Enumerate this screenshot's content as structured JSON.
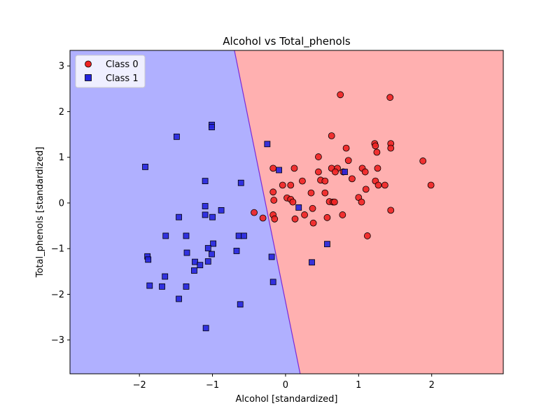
{
  "chart_data": {
    "type": "scatter",
    "title": "Alcohol vs Total_phenols",
    "xlabel": "Alcohol [standardized]",
    "ylabel": "Total_phenols [standardized]",
    "xlim": [
      -2.95,
      2.98
    ],
    "ylim": [
      -3.74,
      3.34
    ],
    "xticks": [
      -2,
      -1,
      0,
      1,
      2
    ],
    "yticks": [
      -3,
      -2,
      -1,
      0,
      1,
      2,
      3
    ],
    "legend_position": "top-left",
    "decision_regions": {
      "boundary": [
        [
          -0.7,
          3.34
        ],
        [
          0.2,
          -3.74
        ]
      ],
      "class_0_color": "#ffb0b0",
      "class_1_color": "#b0b0ff",
      "boundary_color": "#7a2ad8"
    },
    "series": [
      {
        "name": "Class 0",
        "marker": "circle",
        "color": "#ee2222",
        "points": [
          [
            0.75,
            2.37
          ],
          [
            1.43,
            2.31
          ],
          [
            0.63,
            1.47
          ],
          [
            1.22,
            1.3
          ],
          [
            1.44,
            1.3
          ],
          [
            1.23,
            1.25
          ],
          [
            0.83,
            1.2
          ],
          [
            1.44,
            1.2
          ],
          [
            1.25,
            1.11
          ],
          [
            0.45,
            1.01
          ],
          [
            0.86,
            0.93
          ],
          [
            1.88,
            0.92
          ],
          [
            -0.17,
            0.76
          ],
          [
            0.12,
            0.76
          ],
          [
            0.63,
            0.76
          ],
          [
            0.71,
            0.76
          ],
          [
            1.05,
            0.76
          ],
          [
            1.26,
            0.76
          ],
          [
            0.45,
            0.68
          ],
          [
            0.68,
            0.68
          ],
          [
            0.79,
            0.68
          ],
          [
            1.09,
            0.68
          ],
          [
            0.91,
            0.53
          ],
          [
            0.48,
            0.5
          ],
          [
            0.54,
            0.48
          ],
          [
            0.23,
            0.48
          ],
          [
            1.23,
            0.48
          ],
          [
            -0.04,
            0.39
          ],
          [
            0.07,
            0.39
          ],
          [
            1.27,
            0.39
          ],
          [
            1.36,
            0.39
          ],
          [
            1.99,
            0.39
          ],
          [
            1.1,
            0.3
          ],
          [
            -0.17,
            0.24
          ],
          [
            0.35,
            0.22
          ],
          [
            0.54,
            0.22
          ],
          [
            1.0,
            0.12
          ],
          [
            0.02,
            0.11
          ],
          [
            0.07,
            0.08
          ],
          [
            -0.16,
            0.06
          ],
          [
            0.1,
            0.02
          ],
          [
            0.6,
            0.03
          ],
          [
            0.65,
            0.02
          ],
          [
            1.04,
            0.02
          ],
          [
            0.67,
            0.02
          ],
          [
            0.37,
            -0.12
          ],
          [
            1.44,
            -0.16
          ],
          [
            -0.43,
            -0.21
          ],
          [
            -0.17,
            -0.26
          ],
          [
            0.26,
            -0.26
          ],
          [
            0.78,
            -0.26
          ],
          [
            -0.31,
            -0.33
          ],
          [
            -0.15,
            -0.35
          ],
          [
            0.13,
            -0.35
          ],
          [
            0.57,
            -0.32
          ],
          [
            0.38,
            -0.44
          ],
          [
            1.12,
            -0.72
          ]
        ]
      },
      {
        "name": "Class 1",
        "marker": "square",
        "color": "#2424dd",
        "points": [
          [
            -1.01,
            1.71
          ],
          [
            -1.01,
            1.66
          ],
          [
            -1.49,
            1.45
          ],
          [
            -0.25,
            1.29
          ],
          [
            -1.92,
            0.79
          ],
          [
            -0.09,
            0.72
          ],
          [
            0.81,
            0.68
          ],
          [
            -1.1,
            0.48
          ],
          [
            -0.61,
            0.44
          ],
          [
            -1.1,
            -0.07
          ],
          [
            0.18,
            -0.1
          ],
          [
            -0.88,
            -0.16
          ],
          [
            -1.1,
            -0.26
          ],
          [
            -1.46,
            -0.31
          ],
          [
            -1.0,
            -0.31
          ],
          [
            -1.64,
            -0.72
          ],
          [
            -1.36,
            -0.72
          ],
          [
            -0.64,
            -0.72
          ],
          [
            -0.57,
            -0.72
          ],
          [
            0.57,
            -0.9
          ],
          [
            -0.99,
            -0.89
          ],
          [
            -1.06,
            -0.99
          ],
          [
            -0.67,
            -1.05
          ],
          [
            -1.35,
            -1.09
          ],
          [
            -1.01,
            -1.12
          ],
          [
            -0.19,
            -1.18
          ],
          [
            -1.89,
            -1.17
          ],
          [
            -1.88,
            -1.24
          ],
          [
            -1.24,
            -1.29
          ],
          [
            -1.06,
            -1.28
          ],
          [
            0.36,
            -1.3
          ],
          [
            -1.17,
            -1.36
          ],
          [
            -1.25,
            -1.48
          ],
          [
            -1.65,
            -1.61
          ],
          [
            -0.17,
            -1.73
          ],
          [
            -1.86,
            -1.81
          ],
          [
            -1.69,
            -1.83
          ],
          [
            -1.36,
            -1.83
          ],
          [
            -1.46,
            -2.1
          ],
          [
            -0.62,
            -2.22
          ],
          [
            -1.09,
            -2.74
          ]
        ]
      }
    ]
  }
}
